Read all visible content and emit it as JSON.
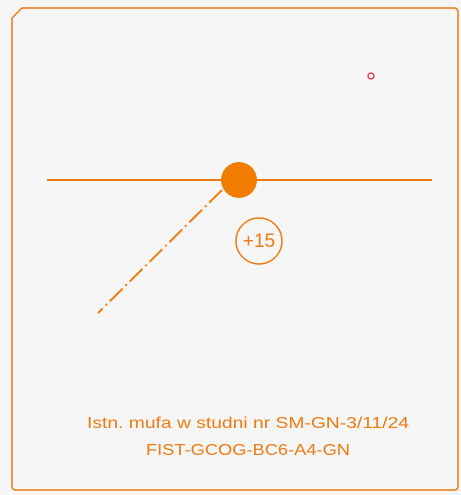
{
  "marker": {
    "label": "+15"
  },
  "caption": {
    "line1": "Istn. mufa w studni nr SM-GN-3/11/24",
    "line2": "FIST-GCOG-BC6-A4-GN"
  }
}
